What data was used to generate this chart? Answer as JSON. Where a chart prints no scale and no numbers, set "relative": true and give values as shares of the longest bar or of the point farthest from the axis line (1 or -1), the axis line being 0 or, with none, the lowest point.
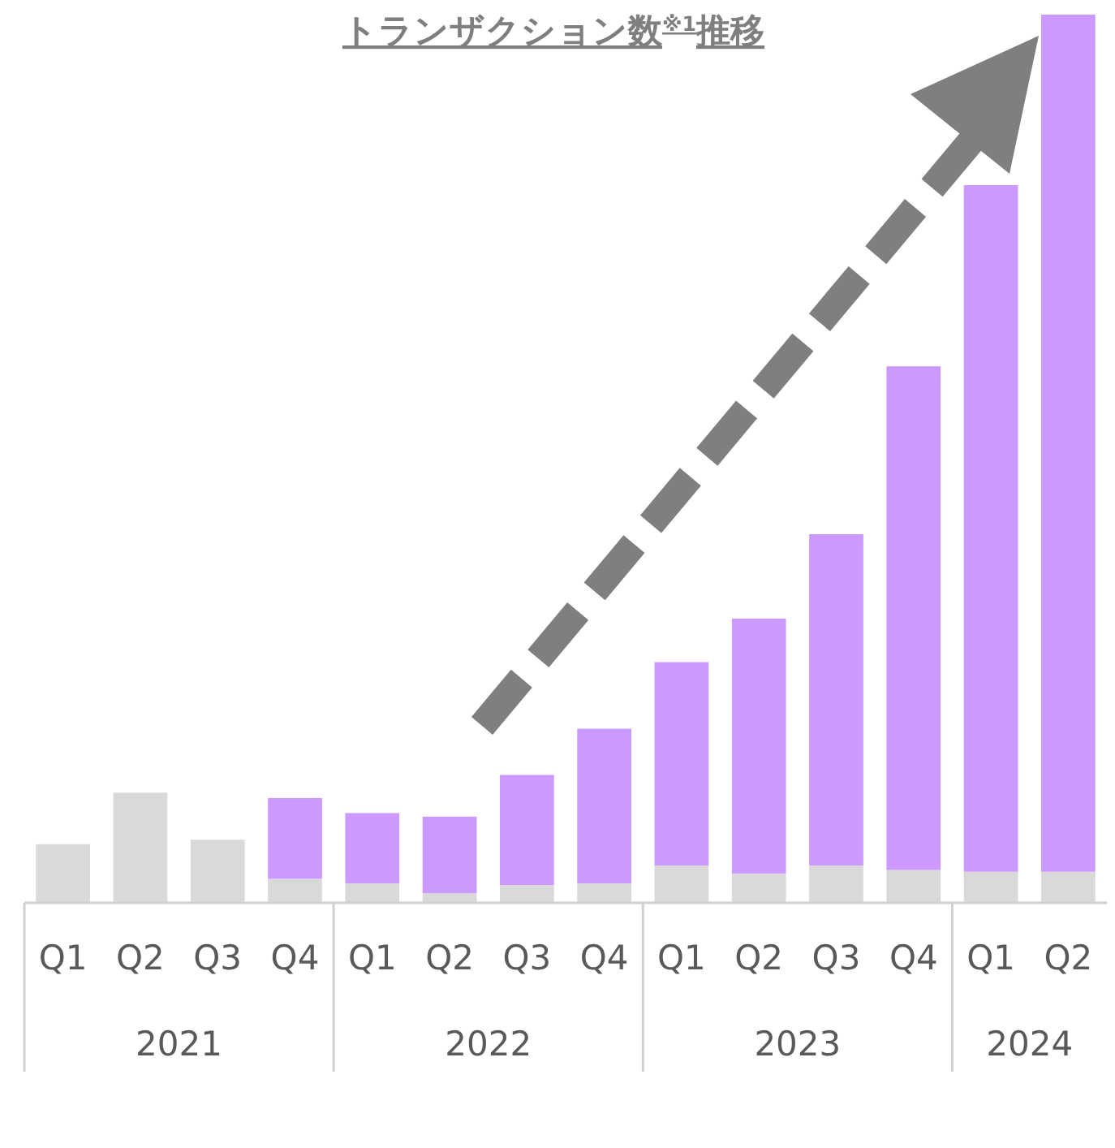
{
  "chart_data": {
    "type": "bar",
    "title": "トランザクション数$^{※1}$推移",
    "stacked": true,
    "relative": true,
    "categories": [
      "Q1",
      "Q2",
      "Q3",
      "Q4",
      "Q1",
      "Q2",
      "Q3",
      "Q4",
      "Q1",
      "Q2",
      "Q3",
      "Q4",
      "Q1",
      "Q2"
    ],
    "annotations": [
      "2021",
      "2022",
      "2023",
      "2024"
    ],
    "series": [
      {
        "color": "#d9d9d9",
        "values": [
          0.066,
          0.124,
          0.071,
          0.027,
          0.022,
          0.011,
          0.02,
          0.022,
          0.042,
          0.033,
          0.042,
          0.037,
          0.035,
          0.035
        ]
      },
      {
        "color": "#cc99ff",
        "values": [
          null,
          null,
          null,
          0.091,
          0.079,
          0.086,
          0.124,
          0.174,
          0.229,
          0.287,
          0.373,
          0.567,
          0.773,
          0.965
        ]
      }
    ]
  }
}
